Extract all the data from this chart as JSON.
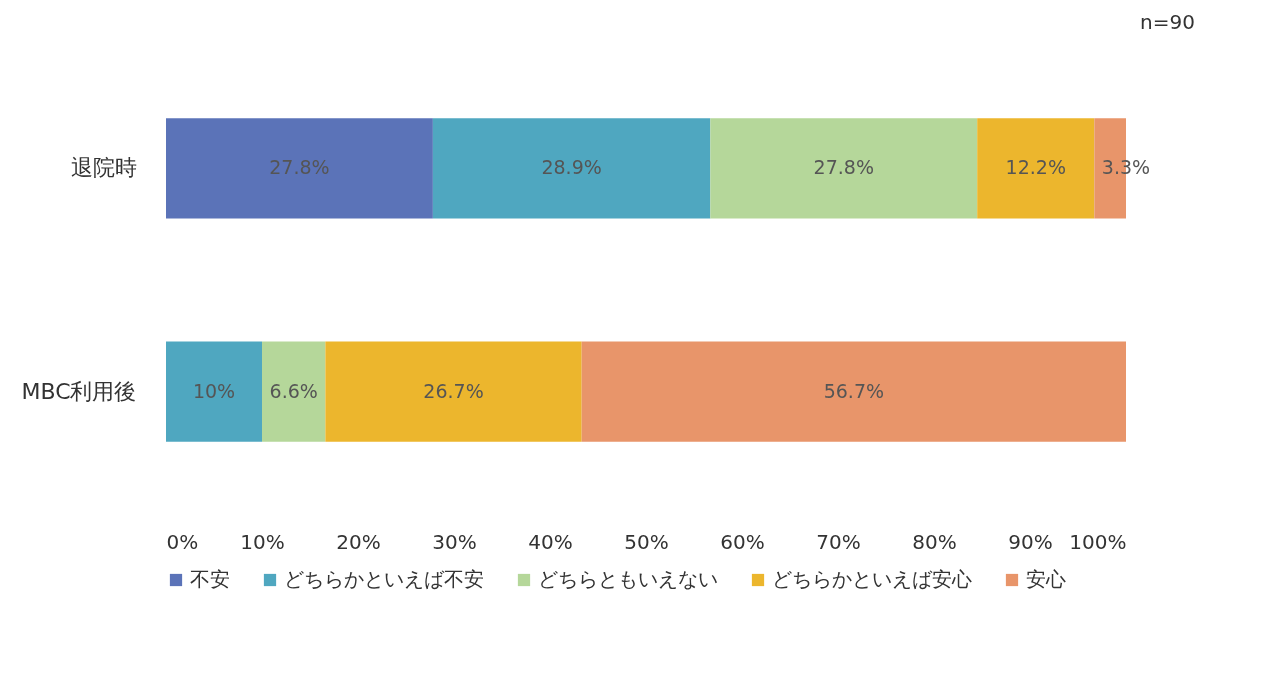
{
  "chart_data": {
    "type": "bar",
    "orientation": "horizontal",
    "stacked": true,
    "categories": [
      "退院時",
      "MBC利用後"
    ],
    "series": [
      {
        "name": "不安",
        "color": "#5b73b8",
        "values": [
          27.8,
          null
        ],
        "value_labels": [
          "27.8%",
          null
        ]
      },
      {
        "name": "どちらかといえば不安",
        "color": "#4fa7c0",
        "values": [
          28.9,
          10
        ],
        "value_labels": [
          "28.9%",
          "10%"
        ]
      },
      {
        "name": "どちらともいえない",
        "color": "#b5d79a",
        "values": [
          27.8,
          6.6
        ],
        "value_labels": [
          "27.8%",
          "6.6%"
        ]
      },
      {
        "name": "どちらかといえば安心",
        "color": "#ecb62d",
        "values": [
          12.2,
          26.7
        ],
        "value_labels": [
          "12.2%",
          "26.7%"
        ]
      },
      {
        "name": "安心",
        "color": "#e8956a",
        "values": [
          3.3,
          56.7
        ],
        "value_labels": [
          "3.3%",
          "56.7%"
        ]
      }
    ],
    "xlim": [
      0,
      100
    ],
    "xticks": [
      {
        "value": 0,
        "label": "0%"
      },
      {
        "value": 10,
        "label": "10%"
      },
      {
        "value": 20,
        "label": "20%"
      },
      {
        "value": 30,
        "label": "30%"
      },
      {
        "value": 40,
        "label": "40%"
      },
      {
        "value": 50,
        "label": "50%"
      },
      {
        "value": 60,
        "label": "60%"
      },
      {
        "value": 70,
        "label": "70%"
      },
      {
        "value": 80,
        "label": "80%"
      },
      {
        "value": 90,
        "label": "90%"
      },
      {
        "value": 100,
        "label": "100%"
      }
    ],
    "grid": false,
    "legend": "bottom",
    "annotations": [
      "n=90"
    ]
  }
}
